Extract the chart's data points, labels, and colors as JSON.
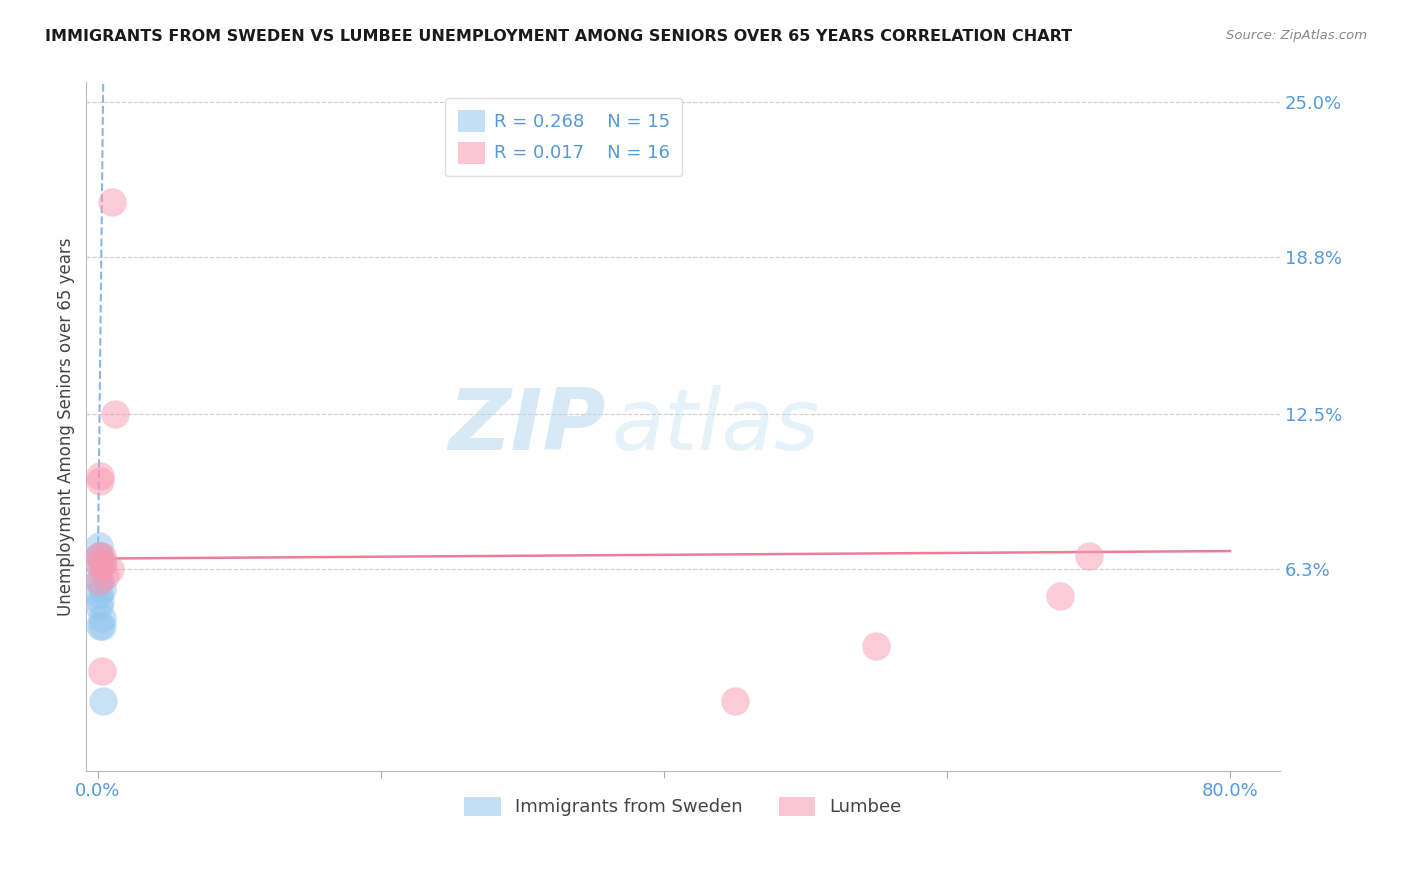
{
  "title": "IMMIGRANTS FROM SWEDEN VS LUMBEE UNEMPLOYMENT AMONG SENIORS OVER 65 YEARS CORRELATION CHART",
  "source": "Source: ZipAtlas.com",
  "ylabel": "Unemployment Among Seniors over 65 years",
  "xlim_min": -0.008,
  "xlim_max": 0.835,
  "ylim_min": -0.018,
  "ylim_max": 0.258,
  "xtick_positions": [
    0.0,
    0.2,
    0.4,
    0.6,
    0.8
  ],
  "xtick_labels": [
    "0.0%",
    "",
    "",
    "",
    "80.0%"
  ],
  "ytick_positions": [
    0.0,
    0.063,
    0.125,
    0.188,
    0.25
  ],
  "ytick_labels": [
    "",
    "6.3%",
    "12.5%",
    "18.8%",
    "25.0%"
  ],
  "grid_lines": [
    0.063,
    0.125,
    0.188,
    0.25
  ],
  "blue_color": "#92C5EE",
  "pink_color": "#F898B0",
  "trend_blue_color": "#4A90D9",
  "trend_pink_color": "#E8708A",
  "tick_color": "#5599DD",
  "R_blue": "0.268",
  "N_blue": "15",
  "R_pink": "0.017",
  "N_pink": "16",
  "legend_blue_label": "Immigrants from Sweden",
  "legend_pink_label": "Lumbee",
  "watermark_zip": "ZIP",
  "watermark_atlas": "atlas",
  "blue_x": [
    0.001,
    0.001,
    0.001,
    0.001,
    0.001,
    0.001,
    0.002,
    0.002,
    0.002,
    0.002,
    0.003,
    0.003,
    0.003,
    0.003,
    0.004
  ],
  "blue_y": [
    0.065,
    0.068,
    0.072,
    0.058,
    0.053,
    0.048,
    0.068,
    0.058,
    0.05,
    0.04,
    0.065,
    0.055,
    0.043,
    0.04,
    0.01
  ],
  "pink_x": [
    0.001,
    0.001,
    0.001,
    0.002,
    0.002,
    0.003,
    0.004,
    0.005,
    0.009,
    0.01,
    0.012,
    0.45,
    0.55,
    0.68,
    0.7,
    0.003
  ],
  "pink_y": [
    0.065,
    0.068,
    0.058,
    0.098,
    0.1,
    0.068,
    0.065,
    0.06,
    0.063,
    0.21,
    0.125,
    0.01,
    0.032,
    0.052,
    0.068,
    0.022
  ],
  "blue_trend_x0": 0.0,
  "blue_trend_y0": 0.055,
  "blue_trend_x1": 0.004,
  "blue_trend_y1": 0.26,
  "pink_trend_x0": 0.0,
  "pink_trend_y0": 0.067,
  "pink_trend_x1": 0.8,
  "pink_trend_y1": 0.07
}
